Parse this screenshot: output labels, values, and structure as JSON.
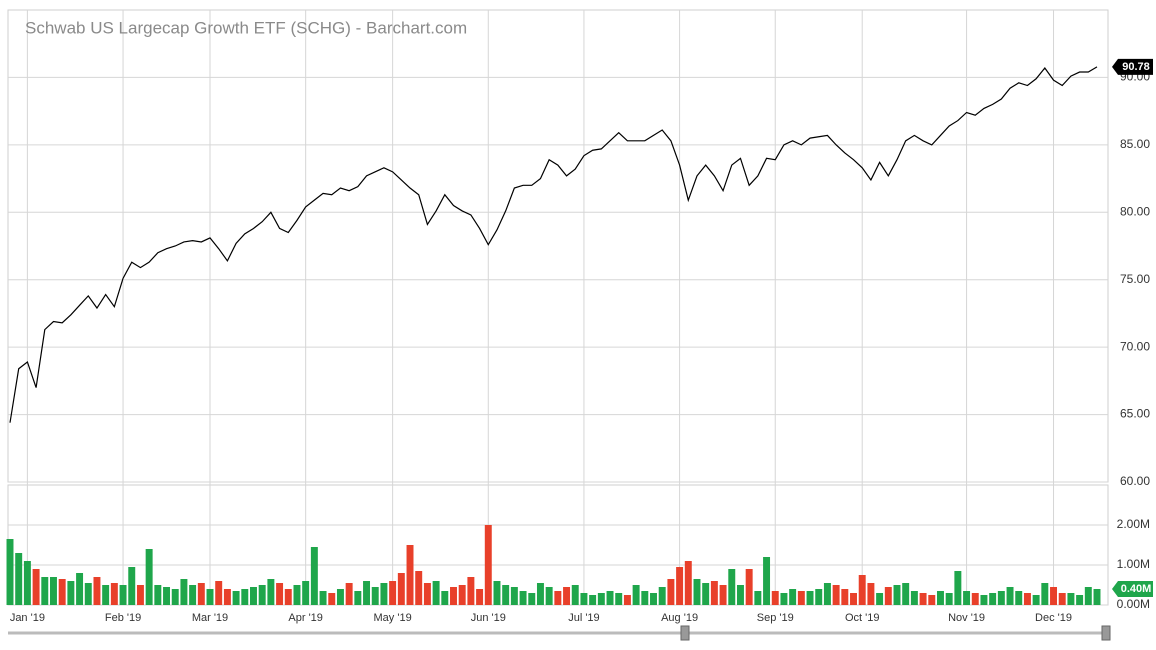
{
  "chart_data": [
    {
      "type": "line",
      "title": "Schwab US Largecap Growth ETF (SCHG) - Barchart.com",
      "color": "#000000",
      "categories": [
        null,
        null,
        "Jan '19",
        null,
        null,
        null,
        null,
        null,
        null,
        null,
        null,
        null,
        null,
        "Feb '19",
        null,
        null,
        null,
        null,
        null,
        null,
        null,
        null,
        null,
        "Mar '19",
        null,
        null,
        null,
        null,
        null,
        null,
        null,
        null,
        null,
        null,
        "Apr '19",
        null,
        null,
        null,
        null,
        null,
        null,
        null,
        null,
        null,
        "May '19",
        null,
        null,
        null,
        null,
        null,
        null,
        null,
        null,
        null,
        null,
        "Jun '19",
        null,
        null,
        null,
        null,
        null,
        null,
        null,
        null,
        null,
        null,
        "Jul '19",
        null,
        null,
        null,
        null,
        null,
        null,
        null,
        null,
        null,
        null,
        "Aug '19",
        null,
        null,
        null,
        null,
        null,
        null,
        null,
        null,
        null,
        null,
        "Sep '19",
        null,
        null,
        null,
        null,
        null,
        null,
        null,
        null,
        null,
        "Oct '19",
        null,
        null,
        null,
        null,
        null,
        null,
        null,
        null,
        null,
        null,
        null,
        "Nov '19",
        null,
        null,
        null,
        null,
        null,
        null,
        null,
        null,
        null,
        "Dec '19",
        null,
        null,
        null,
        null,
        null
      ],
      "values": [
        64.4,
        68.4,
        68.9,
        67.0,
        71.3,
        71.9,
        71.8,
        72.4,
        73.1,
        73.8,
        72.9,
        73.9,
        73.0,
        75.1,
        76.3,
        75.9,
        76.3,
        77.0,
        77.3,
        77.5,
        77.8,
        77.9,
        77.8,
        78.1,
        77.3,
        76.4,
        77.7,
        78.4,
        78.8,
        79.3,
        80.0,
        78.8,
        78.5,
        79.4,
        80.4,
        80.9,
        81.4,
        81.3,
        81.8,
        81.6,
        81.9,
        82.7,
        83.0,
        83.3,
        83.0,
        82.4,
        81.8,
        81.3,
        79.1,
        80.1,
        81.3,
        80.5,
        80.1,
        79.8,
        78.8,
        77.6,
        78.7,
        80.1,
        81.8,
        82.0,
        82.0,
        82.5,
        83.9,
        83.5,
        82.7,
        83.2,
        84.2,
        84.6,
        84.7,
        85.3,
        85.9,
        85.3,
        85.3,
        85.3,
        85.7,
        86.1,
        85.3,
        83.5,
        80.9,
        82.7,
        83.5,
        82.7,
        81.6,
        83.5,
        84.0,
        82.0,
        82.7,
        84.0,
        83.9,
        85.0,
        85.3,
        85.0,
        85.5,
        85.6,
        85.7,
        85.0,
        84.4,
        83.9,
        83.3,
        82.4,
        83.7,
        82.7,
        83.9,
        85.3,
        85.7,
        85.3,
        85.0,
        85.7,
        86.4,
        86.8,
        87.4,
        87.2,
        87.7,
        88.0,
        88.4,
        89.2,
        89.6,
        89.4,
        89.9,
        90.7,
        89.8,
        89.4,
        90.1,
        90.4,
        90.4,
        90.78
      ],
      "ylim": [
        60,
        95
      ],
      "yticks": [
        {
          "value": 60,
          "label": "60.00"
        },
        {
          "value": 65,
          "label": "65.00"
        },
        {
          "value": 70,
          "label": "70.00"
        },
        {
          "value": 75,
          "label": "75.00"
        },
        {
          "value": 80,
          "label": "80.00"
        },
        {
          "value": 85,
          "label": "85.00"
        },
        {
          "value": 90,
          "label": "90.00"
        }
      ],
      "grid": true
    },
    {
      "type": "bar",
      "up_color": "#1fa64b",
      "down_color": "#e8402a",
      "values": [
        1650000,
        1300000,
        1100000,
        900000,
        700000,
        700000,
        650000,
        600000,
        800000,
        550000,
        700000,
        500000,
        550000,
        500000,
        950000,
        500000,
        1400000,
        500000,
        450000,
        400000,
        650000,
        500000,
        550000,
        400000,
        600000,
        400000,
        350000,
        400000,
        450000,
        500000,
        650000,
        550000,
        400000,
        500000,
        600000,
        1450000,
        350000,
        300000,
        400000,
        550000,
        350000,
        600000,
        450000,
        550000,
        600000,
        800000,
        1500000,
        850000,
        550000,
        600000,
        350000,
        450000,
        500000,
        700000,
        400000,
        2000000,
        600000,
        500000,
        450000,
        350000,
        300000,
        550000,
        450000,
        350000,
        450000,
        500000,
        300000,
        250000,
        300000,
        350000,
        300000,
        250000,
        500000,
        350000,
        300000,
        450000,
        650000,
        950000,
        1100000,
        650000,
        550000,
        600000,
        500000,
        900000,
        500000,
        900000,
        350000,
        1200000,
        350000,
        300000,
        400000,
        350000,
        350000,
        400000,
        550000,
        500000,
        400000,
        300000,
        750000,
        550000,
        300000,
        450000,
        500000,
        550000,
        350000,
        300000,
        250000,
        350000,
        300000,
        850000,
        350000,
        300000,
        250000,
        300000,
        350000,
        450000,
        350000,
        300000,
        250000,
        550000,
        450000,
        300000,
        300000,
        250000,
        450000,
        400000
      ],
      "value_labels": [
        null,
        null,
        null,
        null,
        null,
        null,
        null,
        null,
        null,
        null,
        null,
        null,
        null,
        null,
        null,
        null,
        null,
        null,
        null,
        null,
        null,
        null,
        null,
        null,
        null,
        null,
        null,
        null,
        null,
        null,
        null,
        null,
        null,
        null,
        null,
        null,
        null,
        null,
        null,
        null,
        null,
        null,
        null,
        null,
        null,
        null,
        null,
        null,
        null,
        null,
        null,
        null,
        null,
        null,
        null,
        null,
        null,
        null,
        null,
        null,
        null,
        null,
        null,
        null,
        null,
        null,
        null,
        null,
        null,
        null,
        null,
        null,
        null,
        null,
        null,
        null,
        null,
        null,
        null,
        null,
        null,
        null,
        null,
        null,
        null,
        null,
        null,
        null,
        null,
        null,
        null,
        null,
        null,
        null,
        null,
        null,
        null,
        null,
        null,
        null,
        null,
        null,
        null,
        null,
        null,
        null,
        null,
        null,
        null,
        null,
        null,
        null,
        null,
        null,
        null,
        null,
        null,
        null,
        null,
        null,
        null,
        null,
        null,
        null,
        null,
        "0.40M"
      ],
      "ylim": [
        0,
        3000000
      ],
      "yticks": [
        {
          "value": 0,
          "label": "0.00M"
        },
        {
          "value": 1000000,
          "label": "1.00M"
        },
        {
          "value": 2000000,
          "label": "2.00M"
        }
      ],
      "grid": true
    }
  ]
}
